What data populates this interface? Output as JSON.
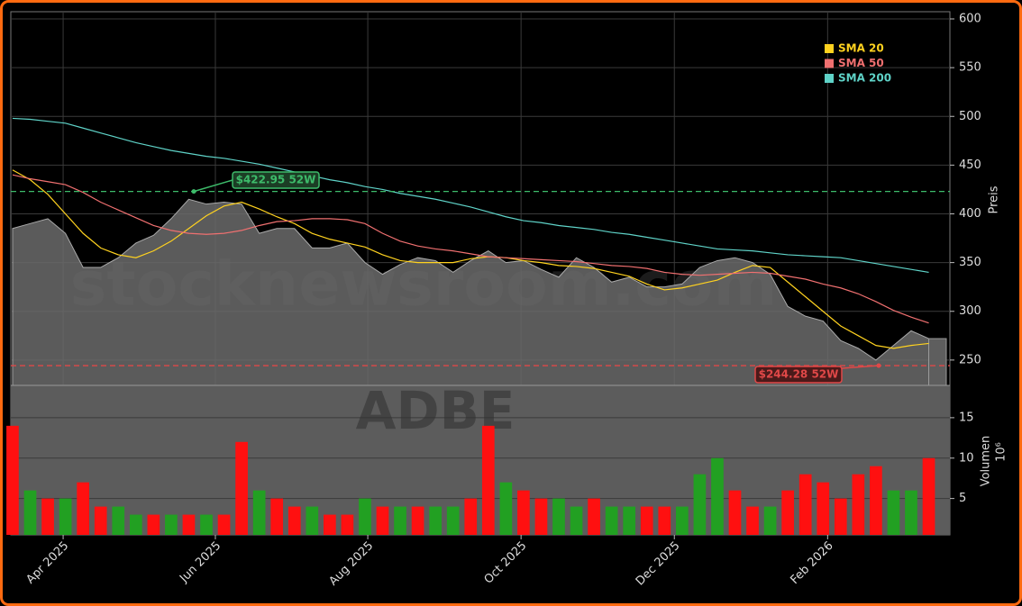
{
  "chart_data": [
    {
      "type": "line",
      "watermark": "stocknewsroom.com",
      "ylabel": "Preis",
      "categories": [
        null,
        null,
        null,
        null,
        null,
        null,
        null,
        null,
        null,
        null,
        null,
        null,
        null,
        null,
        null,
        null,
        null,
        null,
        null,
        null,
        null,
        null,
        null,
        null,
        null,
        null,
        null,
        null,
        null,
        null,
        null,
        null,
        null,
        null,
        null,
        null,
        null,
        null,
        null,
        null,
        null,
        null,
        null,
        null,
        null,
        null,
        null,
        null,
        null,
        null,
        null,
        null,
        null
      ],
      "values": [
        385,
        390,
        395,
        380,
        345,
        345,
        355,
        370,
        378,
        395,
        415,
        410,
        412,
        410,
        380,
        385,
        385,
        365,
        365,
        370,
        350,
        338,
        348,
        355,
        352,
        340,
        352,
        362,
        350,
        352,
        343,
        335,
        355,
        345,
        330,
        335,
        325,
        325,
        328,
        345,
        352,
        355,
        350,
        338,
        305,
        295,
        290,
        270,
        262,
        250,
        265,
        280,
        272
      ],
      "color": "#6b6b6b",
      "series": [
        {
          "name": "SMA 20",
          "color": "#ffd21f",
          "values": [
            445,
            435,
            420,
            400,
            380,
            365,
            358,
            355,
            362,
            372,
            385,
            398,
            408,
            412,
            405,
            397,
            390,
            380,
            374,
            370,
            366,
            358,
            352,
            350,
            350,
            350,
            354,
            356,
            355,
            352,
            350,
            347,
            346,
            344,
            340,
            336,
            328,
            322,
            324,
            328,
            332,
            340,
            347,
            345,
            330,
            315,
            300,
            285,
            275,
            265,
            262,
            265,
            267
          ]
        },
        {
          "name": "SMA 50",
          "color": "#f07070",
          "values": [
            440,
            436,
            433,
            430,
            422,
            412,
            404,
            396,
            388,
            383,
            380,
            379,
            380,
            383,
            388,
            392,
            393,
            395,
            395,
            394,
            390,
            380,
            372,
            367,
            364,
            362,
            359,
            356,
            355,
            354,
            353,
            352,
            351,
            349,
            347,
            346,
            344,
            340,
            338,
            337,
            338,
            339,
            340,
            339,
            336,
            333,
            328,
            324,
            318,
            310,
            301,
            294,
            288
          ]
        },
        {
          "name": "SMA 200",
          "color": "#5fd3c8",
          "values": [
            498,
            497,
            495,
            493,
            488,
            483,
            478,
            473,
            469,
            465,
            462,
            459,
            457,
            454,
            451,
            447,
            443,
            439,
            435,
            432,
            428,
            425,
            421,
            418,
            415,
            411,
            407,
            402,
            397,
            393,
            391,
            388,
            386,
            384,
            381,
            379,
            376,
            373,
            370,
            367,
            364,
            363,
            362,
            360,
            358,
            357,
            356,
            355,
            352,
            349,
            346,
            343,
            340
          ]
        }
      ],
      "annotations": [
        {
          "value": 422.95,
          "label": "$422.95 52W",
          "color": "#3dbb6a"
        },
        {
          "value": 244.28,
          "label": "$244.28 52W",
          "color": "#e04848"
        }
      ],
      "ylim": [
        224,
        607.4
      ],
      "yticks": [
        250,
        300,
        350,
        400,
        450,
        500,
        550,
        600
      ],
      "grid": true,
      "legend": "upper right"
    },
    {
      "type": "bar",
      "watermark": "ADBE",
      "ylabel": "Volumen",
      "yunit": "10⁶",
      "categories": [
        null,
        null,
        null,
        null,
        null,
        null,
        null,
        null,
        null,
        null,
        null,
        null,
        null,
        null,
        null,
        null,
        null,
        null,
        null,
        null,
        null,
        null,
        null,
        null,
        null,
        null,
        null,
        null,
        null,
        null,
        null,
        null,
        null,
        null,
        null,
        null,
        null,
        null,
        null,
        null,
        null,
        null,
        null,
        null,
        null,
        null,
        null,
        null,
        null,
        null,
        null,
        null,
        null
      ],
      "values": [
        14,
        6,
        5,
        5,
        7,
        4,
        4,
        3,
        3,
        3,
        3,
        3,
        3,
        12,
        6,
        5,
        4,
        4,
        3,
        3,
        5,
        4,
        4,
        4,
        4,
        4,
        5,
        14,
        7,
        6,
        5,
        5,
        4,
        5,
        4,
        4,
        4,
        4,
        4,
        8,
        10,
        6,
        4,
        4,
        6,
        8,
        7,
        5,
        8,
        9,
        6,
        6,
        10
      ],
      "colors": [
        "#ff1010",
        "#22a022",
        "#ff1010",
        "#22a022",
        "#ff1010",
        "#ff1010",
        "#22a022",
        "#22a022",
        "#ff1010",
        "#22a022",
        "#ff1010",
        "#22a022",
        "#ff1010",
        "#ff1010",
        "#22a022",
        "#ff1010",
        "#ff1010",
        "#22a022",
        "#ff1010",
        "#ff1010",
        "#22a022",
        "#ff1010",
        "#22a022",
        "#ff1010",
        "#22a022",
        "#22a022",
        "#ff1010",
        "#ff1010",
        "#22a022",
        "#ff1010",
        "#ff1010",
        "#22a022",
        "#22a022",
        "#ff1010",
        "#22a022",
        "#22a022",
        "#ff1010",
        "#ff1010",
        "#22a022",
        "#22a022",
        "#22a022",
        "#ff1010",
        "#ff1010",
        "#22a022",
        "#ff1010",
        "#ff1010",
        "#ff1010",
        "#ff1010",
        "#ff1010",
        "#ff1010",
        "#22a022",
        "#22a022",
        "#ff1010"
      ],
      "ylim": [
        0.5,
        19
      ],
      "yticks": [
        5,
        10,
        15
      ],
      "xlim": [
        -0.1,
        53.2
      ],
      "xticks": [
        {
          "value": 2.87,
          "label": "Apr 2025"
        },
        {
          "value": 11.51,
          "label": "Jun 2025"
        },
        {
          "value": 20.16,
          "label": "Aug 2025"
        },
        {
          "value": 28.86,
          "label": "Oct 2025"
        },
        {
          "value": 37.56,
          "label": "Dec 2025"
        },
        {
          "value": 46.26,
          "label": "Feb 2026"
        }
      ],
      "grid": true
    }
  ]
}
